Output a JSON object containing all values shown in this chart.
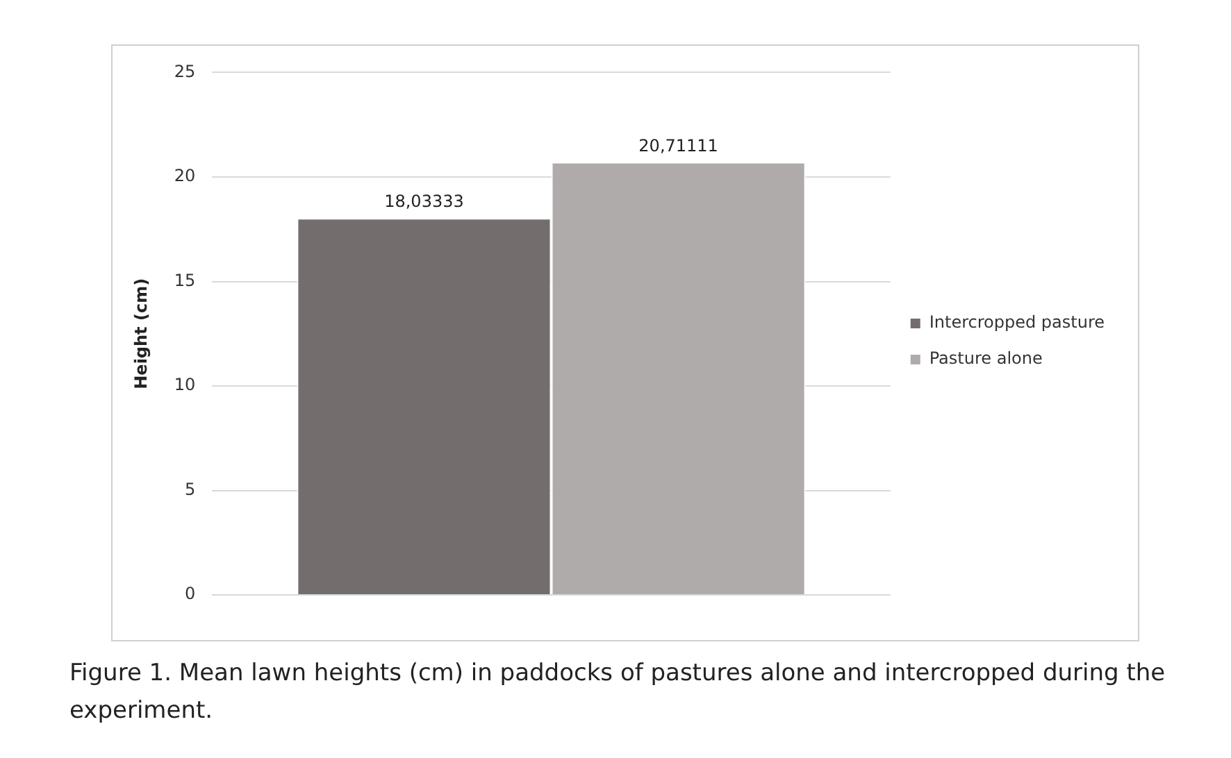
{
  "chart_data": {
    "type": "bar",
    "ylabel": "Height (cm)",
    "categories": [
      null
    ],
    "series": [
      {
        "name": "Intercropped pasture",
        "color": "#736e6d",
        "values": [
          18.03333
        ],
        "value_labels": [
          "18,03333"
        ]
      },
      {
        "name": "Pasture alone",
        "color": "#afabaa",
        "values": [
          20.71111
        ],
        "value_labels": [
          "20,71111"
        ]
      }
    ],
    "ylim": [
      0,
      25
    ],
    "yticks": [
      0,
      5,
      10,
      15,
      20,
      25
    ],
    "grid": "y",
    "legend": "right",
    "annotations": [
      "Figure 1. Mean lawn heights (cm) in paddocks of pastures alone and intercropped during the experiment."
    ]
  }
}
